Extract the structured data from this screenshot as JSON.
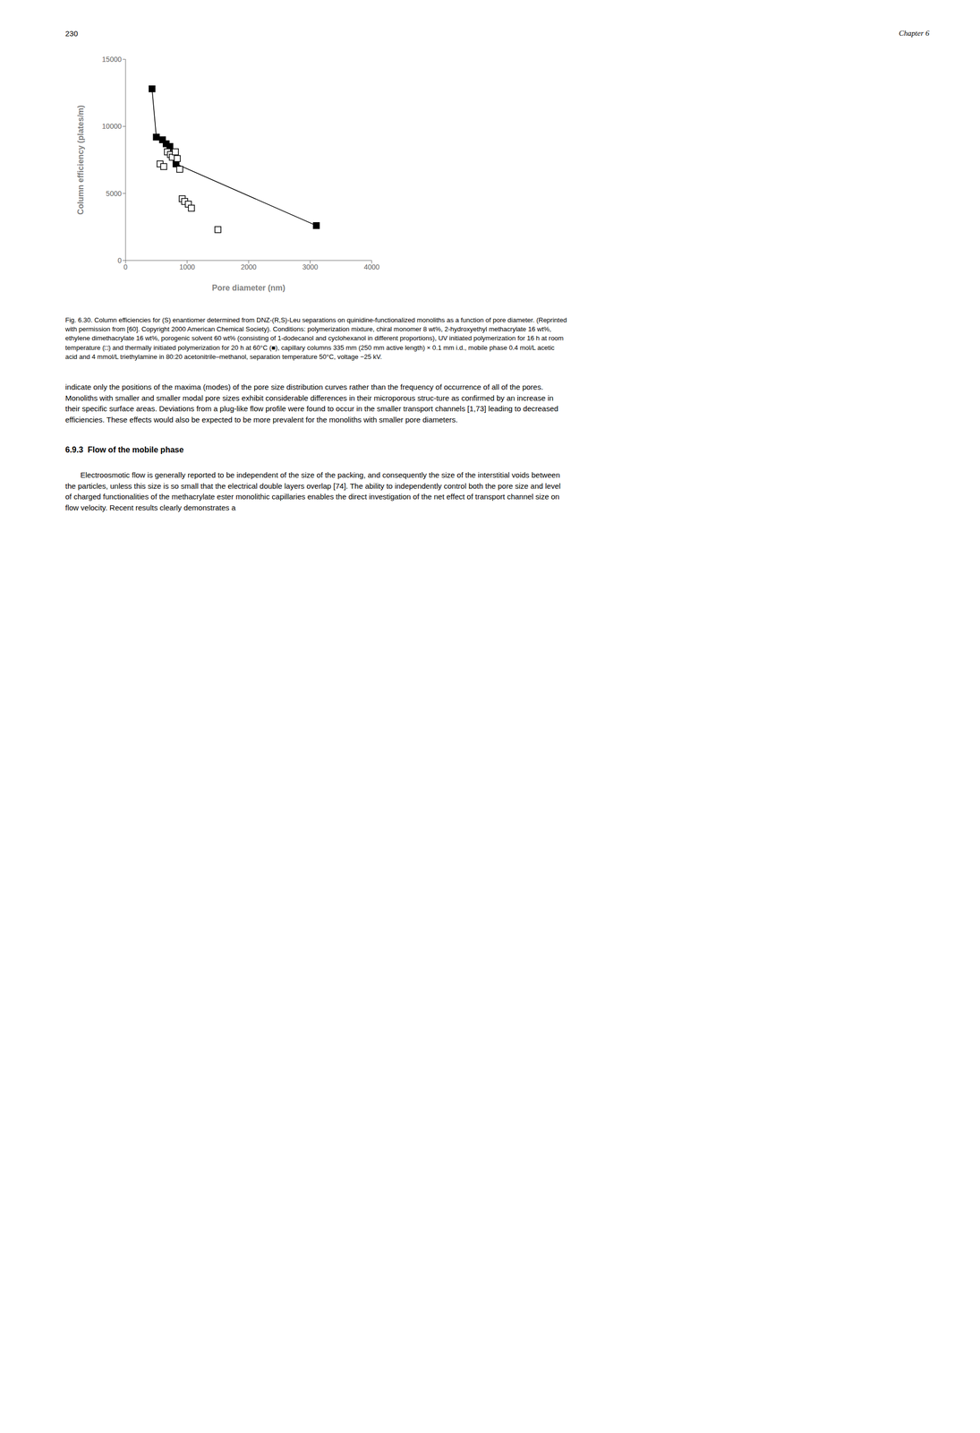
{
  "chart_data": {
    "type": "scatter",
    "xlabel": "Pore diameter (nm)",
    "ylabel": "Column efficiency (plates/m)",
    "xlim": [
      0,
      4000
    ],
    "ylim": [
      0,
      15000
    ],
    "xticks": [
      0,
      1000,
      2000,
      3000,
      4000
    ],
    "yticks": [
      0,
      5000,
      10000,
      15000
    ],
    "grid": false,
    "series": [
      {
        "x": [
          430,
          500,
          600,
          660,
          720,
          820,
          3100
        ],
        "values": [
          12800,
          9200,
          9000,
          8700,
          8500,
          7200,
          2600
        ],
        "color": "#000000",
        "marker": "square",
        "line_style": "solid"
      },
      {
        "x": [
          560,
          620,
          680,
          730,
          760,
          810,
          840,
          880,
          920,
          960,
          1020,
          1070,
          1500
        ],
        "values": [
          7200,
          7000,
          8100,
          7900,
          7700,
          8100,
          7600,
          6800,
          4600,
          4400,
          4200,
          3900,
          2300
        ],
        "color": "#000000",
        "marker": "square_open",
        "line_style": "none"
      }
    ],
    "annotations": [
      "230",
      "Chapter 6",
      "Fig. 6.30.  Column efficiencies for (S) enantiomer determined from DNZ-(R,S)-Leu separations on quinidine-functionalized monoliths as a function of pore diameter. (Reprinted with permission from [60]. Copyright 2000 American Chemical Society). Conditions: polymerization mixture, chiral monomer 8 wt%, 2-hydroxyethyl methacrylate 16 wt%, ethylene dimethacrylate 16 wt%, porogenic solvent 60 wt% (consisting of 1-dodecanol and cyclohexanol in different proportions), UV initiated polymerization for 16 h at room temperature (□) and thermally initiated polymerization for 20 h at 60°C (■), capillary columns 335 mm (250 mm active length) × 0.1 mm i.d., mobile phase 0.4 mol/L acetic acid and 4 mmol/L triethylamine in 80:20 acetonitrile–methanol, separation temperature 50°C, voltage −25 kV.",
      "indicate only the positions of the maxima (modes) of the pore size distribution curves rather than the frequency of occurrence of all of the pores. Monoliths with smaller and smaller modal pore sizes exhibit considerable differences in their microporous struc-ture as confirmed by an increase in their specific surface areas. Deviations from a plug-like flow profile were found to occur in the smaller transport channels [1,73] leading to decreased efficiencies. These effects would also be expected to be more prevalent for the monoliths with smaller pore diameters.",
      "6.9.3  Flow of the mobile phase",
      "Electroosmotic flow is generally reported to be independent of the size of the packing, and consequently the size of the interstitial voids between the particles, unless this size is so small that the electrical double layers overlap [74]. The ability to independently control both the pore size and level of charged functionalities of the methacrylate ester monolithic capillaries enables the direct investigation of the net effect of transport channel size on flow velocity. Recent results clearly demonstrates a"
    ]
  }
}
